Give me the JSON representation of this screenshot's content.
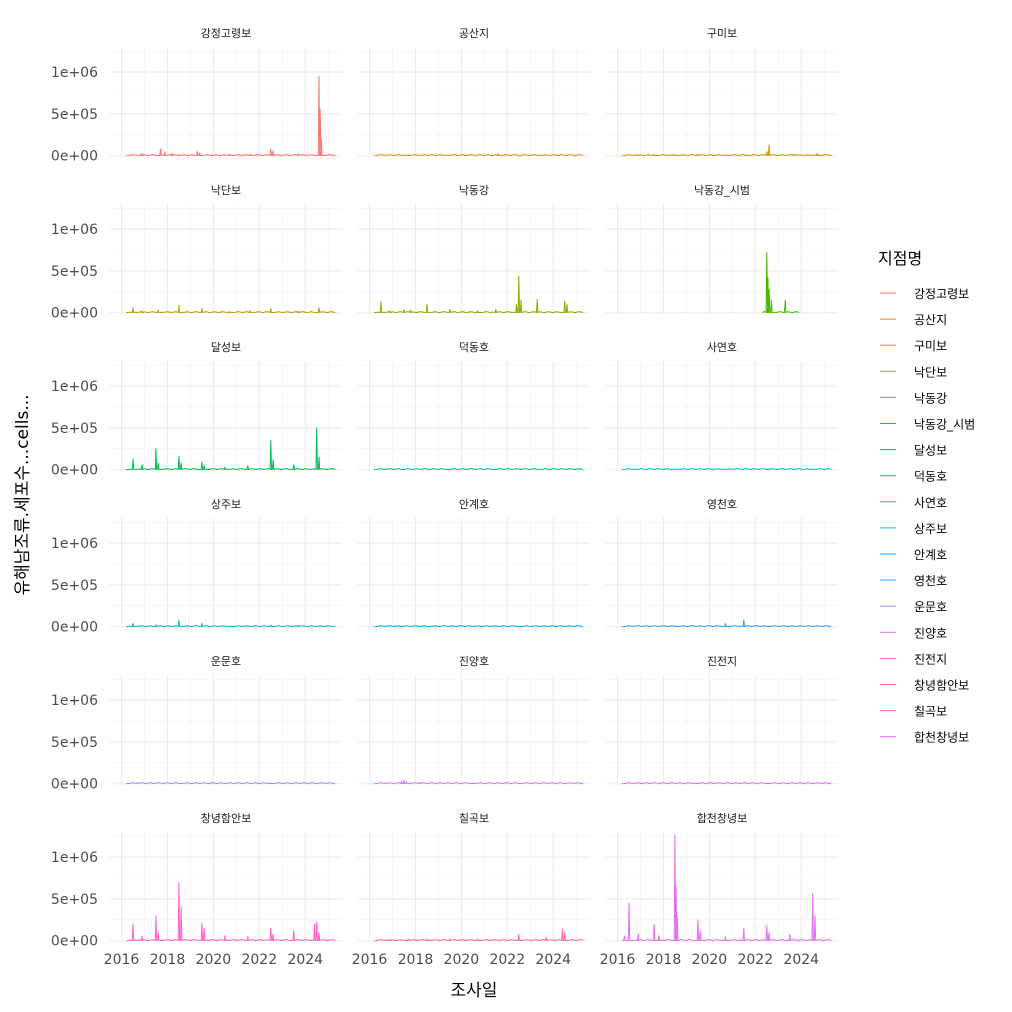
{
  "chart_data": {
    "type": "line",
    "facet_by": "지점명",
    "xlabel": "조사일",
    "ylabel": "유해남조류.세포수...cells...",
    "x_ticks": [
      2016,
      2018,
      2020,
      2022,
      2024
    ],
    "x_range": [
      2015.5,
      2025.6
    ],
    "y_ticks": [
      0,
      500000,
      1000000
    ],
    "y_tick_labels": [
      "0e+00",
      "5e+05",
      "1e+06"
    ],
    "ylim": [
      -15000,
      1300000
    ],
    "grid": true,
    "legend": {
      "title": "지점명",
      "position": "right",
      "entries": [
        {
          "name": "강정고령보",
          "color": "#F8766D"
        },
        {
          "name": "공산지",
          "color": "#E7851E"
        },
        {
          "name": "구미보",
          "color": "#D09400"
        },
        {
          "name": "낙단보",
          "color": "#B2A100"
        },
        {
          "name": "낙동강",
          "color": "#89AC00"
        },
        {
          "name": "낙동강_시범",
          "color": "#45B500"
        },
        {
          "name": "달성보",
          "color": "#00BC51"
        },
        {
          "name": "덕동호",
          "color": "#00C087"
        },
        {
          "name": "사연호",
          "color": "#00C0B2"
        },
        {
          "name": "상주보",
          "color": "#00BCD6"
        },
        {
          "name": "안계호",
          "color": "#00B3F2"
        },
        {
          "name": "영천호",
          "color": "#29A3FF"
        },
        {
          "name": "운문호",
          "color": "#9C8DFF"
        },
        {
          "name": "진양호",
          "color": "#D277FF"
        },
        {
          "name": "진전지",
          "color": "#F166E8"
        },
        {
          "name": "창녕함안보",
          "color": "#FF61C7"
        },
        {
          "name": "칠곡보",
          "color": "#FF689E"
        },
        {
          "name": "합천창녕보",
          "color": "#E76BF3"
        }
      ]
    },
    "panels": [
      {
        "name": "강정고령보",
        "range": [
          2016.2,
          2025.3
        ],
        "peaks": [
          [
            2016.9,
            30000
          ],
          [
            2017.7,
            80000
          ],
          [
            2017.9,
            45000
          ],
          [
            2018.2,
            30000
          ],
          [
            2019.3,
            50000
          ],
          [
            2019.4,
            35000
          ],
          [
            2020.7,
            20000
          ],
          [
            2021.6,
            20000
          ],
          [
            2022.5,
            80000
          ],
          [
            2022.6,
            60000
          ],
          [
            2023.7,
            25000
          ],
          [
            2024.6,
            950000
          ],
          [
            2024.65,
            550000
          ],
          [
            2024.7,
            200000
          ]
        ]
      },
      {
        "name": "공산지",
        "range": [
          2016.2,
          2025.3
        ],
        "peaks": [
          [
            2017.6,
            8000
          ],
          [
            2019.5,
            6000
          ],
          [
            2021.6,
            25000
          ],
          [
            2022.6,
            5000
          ],
          [
            2023.5,
            5000
          ]
        ]
      },
      {
        "name": "구미보",
        "range": [
          2016.2,
          2025.3
        ],
        "peaks": [
          [
            2016.9,
            10000
          ],
          [
            2017.6,
            20000
          ],
          [
            2018.5,
            15000
          ],
          [
            2019.5,
            20000
          ],
          [
            2020.7,
            10000
          ],
          [
            2021.6,
            15000
          ],
          [
            2022.5,
            50000
          ],
          [
            2022.6,
            130000
          ],
          [
            2023.7,
            15000
          ],
          [
            2024.7,
            30000
          ]
        ]
      },
      {
        "name": "낙단보",
        "range": [
          2016.2,
          2025.3
        ],
        "peaks": [
          [
            2016.5,
            60000
          ],
          [
            2016.9,
            20000
          ],
          [
            2017.6,
            30000
          ],
          [
            2018.5,
            90000
          ],
          [
            2019.5,
            50000
          ],
          [
            2020.7,
            15000
          ],
          [
            2021.6,
            25000
          ],
          [
            2022.5,
            50000
          ],
          [
            2023.7,
            20000
          ],
          [
            2024.6,
            60000
          ]
        ]
      },
      {
        "name": "낙동강",
        "range": [
          2016.2,
          2025.3
        ],
        "peaks": [
          [
            2016.5,
            130000
          ],
          [
            2016.9,
            20000
          ],
          [
            2017.5,
            40000
          ],
          [
            2017.8,
            30000
          ],
          [
            2018.5,
            100000
          ],
          [
            2019.5,
            40000
          ],
          [
            2020.7,
            25000
          ],
          [
            2021.5,
            40000
          ],
          [
            2022.4,
            100000
          ],
          [
            2022.5,
            440000
          ],
          [
            2022.6,
            150000
          ],
          [
            2023.3,
            160000
          ],
          [
            2024.5,
            140000
          ],
          [
            2024.6,
            100000
          ]
        ]
      },
      {
        "name": "낙동강_시범",
        "range": [
          2022.3,
          2023.9
        ],
        "peaks": [
          [
            2022.5,
            720000
          ],
          [
            2022.55,
            420000
          ],
          [
            2022.6,
            280000
          ],
          [
            2022.7,
            150000
          ],
          [
            2023.3,
            150000
          ]
        ]
      },
      {
        "name": "달성보",
        "range": [
          2016.2,
          2025.3
        ],
        "peaks": [
          [
            2016.5,
            130000
          ],
          [
            2016.9,
            60000
          ],
          [
            2017.5,
            250000
          ],
          [
            2017.6,
            80000
          ],
          [
            2018.5,
            160000
          ],
          [
            2018.6,
            80000
          ],
          [
            2019.5,
            90000
          ],
          [
            2019.6,
            50000
          ],
          [
            2020.5,
            30000
          ],
          [
            2021.5,
            50000
          ],
          [
            2022.5,
            350000
          ],
          [
            2022.6,
            120000
          ],
          [
            2023.5,
            60000
          ],
          [
            2024.5,
            500000
          ],
          [
            2024.6,
            150000
          ]
        ]
      },
      {
        "name": "덕동호",
        "range": [
          2016.2,
          2025.3
        ],
        "peaks": [
          [
            2017.5,
            5000
          ],
          [
            2019.5,
            5000
          ],
          [
            2021.5,
            5000
          ],
          [
            2023.5,
            5000
          ]
        ]
      },
      {
        "name": "사연호",
        "range": [
          2016.2,
          2025.3
        ],
        "peaks": [
          [
            2016.8,
            10000
          ],
          [
            2018.5,
            8000
          ],
          [
            2020.5,
            8000
          ],
          [
            2022.6,
            10000
          ],
          [
            2024.5,
            8000
          ]
        ]
      },
      {
        "name": "상주보",
        "range": [
          2016.2,
          2025.3
        ],
        "peaks": [
          [
            2016.5,
            40000
          ],
          [
            2017.5,
            25000
          ],
          [
            2018.5,
            80000
          ],
          [
            2019.5,
            40000
          ],
          [
            2020.7,
            10000
          ],
          [
            2022.5,
            20000
          ],
          [
            2023.7,
            15000
          ]
        ]
      },
      {
        "name": "안계호",
        "range": [
          2016.2,
          2025.3
        ],
        "peaks": [
          [
            2018.5,
            3000
          ],
          [
            2022.5,
            3000
          ]
        ]
      },
      {
        "name": "영천호",
        "range": [
          2016.2,
          2025.3
        ],
        "peaks": [
          [
            2018.5,
            10000
          ],
          [
            2020.7,
            40000
          ],
          [
            2021.5,
            80000
          ],
          [
            2022.5,
            5000
          ]
        ]
      },
      {
        "name": "운문호",
        "range": [
          2016.2,
          2025.3
        ],
        "peaks": [
          [
            2018.5,
            4000
          ],
          [
            2022.5,
            4000
          ]
        ]
      },
      {
        "name": "진양호",
        "range": [
          2016.2,
          2025.3
        ],
        "peaks": [
          [
            2017.4,
            30000
          ],
          [
            2017.5,
            45000
          ],
          [
            2017.6,
            25000
          ],
          [
            2018.2,
            15000
          ],
          [
            2020.5,
            5000
          ],
          [
            2022.5,
            5000
          ]
        ]
      },
      {
        "name": "진전지",
        "range": [
          2016.2,
          2025.3
        ],
        "peaks": [
          [
            2019.5,
            3000
          ],
          [
            2022.5,
            3000
          ]
        ]
      },
      {
        "name": "창녕함안보",
        "range": [
          2016.2,
          2025.3
        ],
        "peaks": [
          [
            2016.5,
            200000
          ],
          [
            2016.9,
            50000
          ],
          [
            2017.5,
            300000
          ],
          [
            2017.6,
            100000
          ],
          [
            2018.5,
            700000
          ],
          [
            2018.6,
            400000
          ],
          [
            2019.5,
            210000
          ],
          [
            2019.6,
            150000
          ],
          [
            2020.5,
            60000
          ],
          [
            2021.5,
            50000
          ],
          [
            2022.5,
            150000
          ],
          [
            2022.6,
            80000
          ],
          [
            2023.5,
            120000
          ],
          [
            2024.4,
            200000
          ],
          [
            2024.5,
            220000
          ],
          [
            2024.6,
            100000
          ]
        ]
      },
      {
        "name": "칠곡보",
        "range": [
          2016.2,
          2025.3
        ],
        "peaks": [
          [
            2016.9,
            15000
          ],
          [
            2017.7,
            20000
          ],
          [
            2018.5,
            20000
          ],
          [
            2019.5,
            25000
          ],
          [
            2020.7,
            20000
          ],
          [
            2022.5,
            80000
          ],
          [
            2023.7,
            40000
          ],
          [
            2024.4,
            140000
          ],
          [
            2024.5,
            100000
          ]
        ]
      },
      {
        "name": "합천창녕보",
        "range": [
          2016.2,
          2025.3
        ],
        "peaks": [
          [
            2016.3,
            60000
          ],
          [
            2016.5,
            450000
          ],
          [
            2016.9,
            80000
          ],
          [
            2017.6,
            200000
          ],
          [
            2017.8,
            60000
          ],
          [
            2018.5,
            1270000
          ],
          [
            2018.55,
            650000
          ],
          [
            2018.6,
            300000
          ],
          [
            2019.5,
            250000
          ],
          [
            2019.6,
            120000
          ],
          [
            2020.7,
            50000
          ],
          [
            2021.5,
            150000
          ],
          [
            2022.5,
            180000
          ],
          [
            2022.6,
            100000
          ],
          [
            2023.5,
            80000
          ],
          [
            2024.5,
            560000
          ],
          [
            2024.6,
            300000
          ]
        ]
      }
    ]
  }
}
